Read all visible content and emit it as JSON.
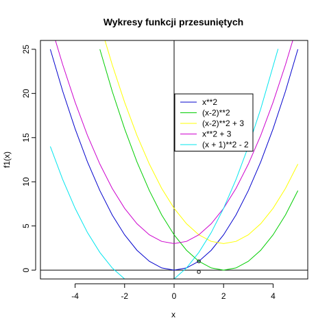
{
  "chart_data": {
    "type": "line",
    "title": "Wykresy funkcji przesuniętych",
    "xlabel": "x",
    "ylabel": "f1(x)",
    "xlim": [
      -5.4,
      5.4
    ],
    "ylim": [
      -1,
      26
    ],
    "x_ticks": [
      -4,
      -2,
      0,
      2,
      4
    ],
    "y_ticks": [
      0,
      5,
      10,
      15,
      20,
      25
    ],
    "x_tick_labels": [
      "-4",
      "-2",
      "0",
      "2",
      "4"
    ],
    "y_tick_labels": [
      "0",
      "5",
      "10",
      "15",
      "20",
      "25"
    ],
    "legend_position": "center-right",
    "reference_lines": {
      "horizontal_y": 0,
      "vertical_x": 0
    },
    "series": [
      {
        "name": "x**2",
        "color": "#0000CD",
        "x": [
          -5,
          -4.5,
          -4,
          -3.5,
          -3,
          -2.5,
          -2,
          -1.5,
          -1,
          -0.5,
          0,
          0.5,
          1,
          1.5,
          2,
          2.5,
          3,
          3.5,
          4,
          4.5,
          5
        ],
        "y": [
          25,
          20.25,
          16,
          12.25,
          9,
          6.25,
          4,
          2.25,
          1,
          0.25,
          0,
          0.25,
          1,
          2.25,
          4,
          6.25,
          9,
          12.25,
          16,
          20.25,
          25
        ]
      },
      {
        "name": "(x-2)**2",
        "color": "#00CD00",
        "x": [
          -3,
          -2.5,
          -2,
          -1.5,
          -1,
          -0.5,
          0,
          0.5,
          1,
          1.5,
          2,
          2.5,
          3,
          3.5,
          4,
          4.5,
          5
        ],
        "y": [
          25,
          20.25,
          16,
          12.25,
          9,
          6.25,
          4,
          2.25,
          1,
          0.25,
          0,
          0.25,
          1,
          2.25,
          4,
          6.25,
          9
        ]
      },
      {
        "name": "(x-2)**2 + 3",
        "color": "#FFFF00",
        "x": [
          -2.9,
          -2.5,
          -2,
          -1.5,
          -1,
          -0.5,
          0,
          0.5,
          1,
          1.5,
          2,
          2.5,
          3,
          3.5,
          4,
          4.5,
          5
        ],
        "y": [
          27.0,
          23.25,
          19,
          15.25,
          12,
          9.25,
          7,
          5.25,
          4,
          3.25,
          3,
          3.25,
          4,
          5.25,
          7,
          9.25,
          12
        ]
      },
      {
        "name": "x**2 + 3",
        "color": "#CD00CD",
        "x": [
          -4.8,
          -4.5,
          -4,
          -3.5,
          -3,
          -2.5,
          -2,
          -1.5,
          -1,
          -0.5,
          0,
          0.5,
          1,
          1.5,
          2,
          2.5,
          3,
          3.5,
          4,
          4.5,
          4.8
        ],
        "y": [
          26.04,
          23.25,
          19,
          15.25,
          12,
          9.25,
          7,
          5.25,
          4,
          3.25,
          3,
          3.25,
          4,
          5.25,
          7,
          9.25,
          12,
          15.25,
          19,
          23.25,
          26.04
        ]
      },
      {
        "name": "(x + 1)**2 - 2",
        "color": "#00E5EE",
        "x": [
          -5,
          -4.5,
          -4,
          -3.5,
          -3,
          -2.5,
          -2,
          -1.5,
          -1,
          -0.5,
          0,
          0.5,
          1,
          1.5,
          2,
          2.5,
          3,
          3.5,
          4.2
        ],
        "y": [
          14,
          10.25,
          7,
          4.25,
          2,
          0.25,
          -1,
          -1.75,
          -2,
          -1.75,
          -1,
          0.25,
          2,
          4.25,
          7,
          10.25,
          14,
          18.25,
          25.04
        ]
      }
    ],
    "points": [
      {
        "x": 1,
        "y": 1
      },
      {
        "x": 1,
        "y": -0.2
      }
    ]
  }
}
